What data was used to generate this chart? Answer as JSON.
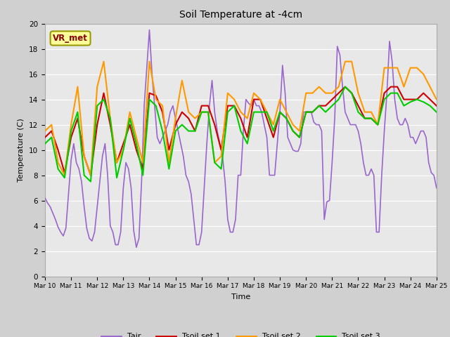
{
  "title": "Soil Temperature at -4cm",
  "xlabel": "Time",
  "ylabel": "Temperature (C)",
  "ylim": [
    0,
    20
  ],
  "xlim": [
    0,
    15
  ],
  "fig_bg": "#d0d0d0",
  "plot_bg": "#e8e8e8",
  "grid_color": "#ffffff",
  "annotation_text": "VR_met",
  "annotation_bg": "#ffff99",
  "annotation_border": "#999900",
  "annotation_text_color": "#880000",
  "xtick_labels": [
    "Mar 10",
    "Mar 11",
    "Mar 12",
    "Mar 13",
    "Mar 14",
    "Mar 15",
    "Mar 16",
    "Mar 17",
    "Mar 18",
    "Mar 19",
    "Mar 20",
    "Mar 21",
    "Mar 22",
    "Mar 23",
    "Mar 24",
    "Mar 25"
  ],
  "legend_entries": [
    "Tair",
    "Tsoil set 1",
    "Tsoil set 2",
    "Tsoil set 3"
  ],
  "legend_colors": [
    "#9966cc",
    "#cc0000",
    "#ff9900",
    "#00cc00"
  ],
  "Tair_x": [
    0.0,
    0.1,
    0.2,
    0.3,
    0.4,
    0.5,
    0.6,
    0.7,
    0.8,
    0.9,
    1.0,
    1.1,
    1.2,
    1.3,
    1.4,
    1.5,
    1.6,
    1.7,
    1.8,
    1.9,
    2.0,
    2.1,
    2.2,
    2.3,
    2.4,
    2.5,
    2.6,
    2.7,
    2.8,
    2.9,
    3.0,
    3.1,
    3.2,
    3.3,
    3.4,
    3.5,
    3.6,
    3.7,
    3.8,
    3.9,
    4.0,
    4.1,
    4.2,
    4.3,
    4.4,
    4.5,
    4.6,
    4.7,
    4.8,
    4.9,
    5.0,
    5.1,
    5.2,
    5.3,
    5.4,
    5.5,
    5.6,
    5.7,
    5.8,
    5.9,
    6.0,
    6.1,
    6.2,
    6.3,
    6.4,
    6.5,
    6.6,
    6.7,
    6.8,
    6.9,
    7.0,
    7.1,
    7.2,
    7.3,
    7.4,
    7.5,
    7.6,
    7.7,
    7.8,
    7.9,
    8.0,
    8.1,
    8.2,
    8.3,
    8.4,
    8.5,
    8.6,
    8.7,
    8.8,
    8.9,
    9.0,
    9.1,
    9.2,
    9.3,
    9.4,
    9.5,
    9.6,
    9.7,
    9.8,
    9.9,
    10.0,
    10.1,
    10.2,
    10.3,
    10.4,
    10.5,
    10.6,
    10.7,
    10.8,
    10.9,
    11.0,
    11.1,
    11.2,
    11.3,
    11.4,
    11.5,
    11.6,
    11.7,
    11.8,
    11.9,
    12.0,
    12.1,
    12.2,
    12.3,
    12.4,
    12.5,
    12.6,
    12.7,
    12.8,
    12.9,
    13.0,
    13.1,
    13.2,
    13.3,
    13.4,
    13.5,
    13.6,
    13.7,
    13.8,
    13.9,
    14.0,
    14.1,
    14.2,
    14.3,
    14.4,
    14.5,
    14.6,
    14.7,
    14.8,
    14.9,
    15.0
  ],
  "Tair_y": [
    6.2,
    5.8,
    5.5,
    5.0,
    4.5,
    3.9,
    3.5,
    3.2,
    3.8,
    6.5,
    9.2,
    10.5,
    9.0,
    8.5,
    7.5,
    5.5,
    3.8,
    3.0,
    2.8,
    3.5,
    5.5,
    7.5,
    9.5,
    10.5,
    8.0,
    4.0,
    3.5,
    2.5,
    2.5,
    3.5,
    7.0,
    9.0,
    8.5,
    7.0,
    3.6,
    2.3,
    3.0,
    7.5,
    13.5,
    16.5,
    19.5,
    16.0,
    13.5,
    11.0,
    10.5,
    11.0,
    11.5,
    12.0,
    13.0,
    13.5,
    12.5,
    11.5,
    10.5,
    9.5,
    8.0,
    7.5,
    6.5,
    4.5,
    2.5,
    2.5,
    3.5,
    7.0,
    10.5,
    13.5,
    15.5,
    13.0,
    11.5,
    10.5,
    9.5,
    7.5,
    4.5,
    3.5,
    3.5,
    4.5,
    8.0,
    8.0,
    11.5,
    14.0,
    13.7,
    13.5,
    14.0,
    13.5,
    13.5,
    13.0,
    12.0,
    11.0,
    8.0,
    8.0,
    8.0,
    10.5,
    13.0,
    16.7,
    14.5,
    11.0,
    10.5,
    10.0,
    9.9,
    9.9,
    10.5,
    13.0,
    13.0,
    13.0,
    13.0,
    12.2,
    12.0,
    12.0,
    11.5,
    4.5,
    5.9,
    6.0,
    9.0,
    12.5,
    18.2,
    17.5,
    15.0,
    13.0,
    12.5,
    12.0,
    12.0,
    12.0,
    11.5,
    10.5,
    9.0,
    8.0,
    8.0,
    8.5,
    8.0,
    3.5,
    3.5,
    8.0,
    11.5,
    14.5,
    18.6,
    17.0,
    14.0,
    12.5,
    12.0,
    12.0,
    12.5,
    12.0,
    11.0,
    11.0,
    10.5,
    11.0,
    11.5,
    11.5,
    11.0,
    9.0,
    8.2,
    8.0,
    7.0
  ],
  "Ts1_x": [
    0.0,
    0.25,
    0.5,
    0.75,
    1.0,
    1.25,
    1.5,
    1.75,
    2.0,
    2.25,
    2.5,
    2.75,
    3.0,
    3.25,
    3.5,
    3.75,
    4.0,
    4.25,
    4.5,
    4.75,
    5.0,
    5.25,
    5.5,
    5.75,
    6.0,
    6.25,
    6.5,
    6.75,
    7.0,
    7.25,
    7.5,
    7.75,
    8.0,
    8.25,
    8.5,
    8.75,
    9.0,
    9.25,
    9.5,
    9.75,
    10.0,
    10.25,
    10.5,
    10.75,
    11.0,
    11.25,
    11.5,
    11.75,
    12.0,
    12.25,
    12.5,
    12.75,
    13.0,
    13.25,
    13.5,
    13.75,
    14.0,
    14.25,
    14.5,
    14.75,
    15.0
  ],
  "Ts1_y": [
    11.0,
    11.5,
    10.0,
    8.2,
    11.0,
    12.5,
    9.5,
    8.0,
    12.0,
    14.5,
    12.0,
    9.0,
    10.5,
    12.0,
    10.0,
    8.5,
    14.5,
    14.3,
    13.0,
    10.0,
    12.0,
    13.0,
    12.5,
    11.5,
    13.5,
    13.5,
    12.0,
    10.0,
    13.5,
    13.5,
    12.5,
    11.0,
    14.0,
    14.0,
    12.5,
    11.0,
    13.0,
    12.5,
    11.5,
    11.0,
    13.0,
    13.0,
    13.5,
    13.5,
    14.0,
    14.5,
    15.0,
    14.5,
    13.5,
    12.5,
    12.5,
    12.0,
    14.5,
    15.0,
    15.0,
    14.0,
    14.0,
    14.0,
    14.5,
    14.0,
    13.5
  ],
  "Ts2_x": [
    0.0,
    0.25,
    0.5,
    0.75,
    1.0,
    1.25,
    1.5,
    1.75,
    2.0,
    2.25,
    2.5,
    2.75,
    3.0,
    3.25,
    3.5,
    3.75,
    4.0,
    4.25,
    4.5,
    4.75,
    5.0,
    5.25,
    5.5,
    5.75,
    6.0,
    6.25,
    6.5,
    6.75,
    7.0,
    7.25,
    7.5,
    7.75,
    8.0,
    8.25,
    8.5,
    8.75,
    9.0,
    9.25,
    9.5,
    9.75,
    10.0,
    10.25,
    10.5,
    10.75,
    11.0,
    11.25,
    11.5,
    11.75,
    12.0,
    12.25,
    12.5,
    12.75,
    13.0,
    13.25,
    13.5,
    13.75,
    14.0,
    14.25,
    14.5,
    14.75,
    15.0
  ],
  "Ts2_y": [
    11.5,
    12.0,
    9.0,
    8.0,
    12.0,
    15.0,
    9.5,
    8.0,
    15.0,
    17.0,
    12.5,
    9.0,
    10.0,
    13.0,
    11.0,
    9.0,
    17.0,
    14.0,
    13.5,
    9.0,
    12.5,
    15.5,
    13.0,
    12.5,
    13.0,
    13.0,
    9.0,
    9.5,
    14.5,
    14.0,
    13.0,
    12.5,
    14.5,
    14.0,
    13.0,
    12.0,
    14.0,
    13.0,
    12.0,
    11.5,
    14.5,
    14.5,
    15.0,
    14.5,
    14.5,
    15.0,
    17.0,
    17.0,
    14.5,
    13.0,
    13.0,
    12.0,
    16.5,
    16.5,
    16.5,
    15.0,
    16.5,
    16.5,
    16.0,
    15.0,
    14.0
  ],
  "Ts3_x": [
    0.0,
    0.25,
    0.5,
    0.75,
    1.0,
    1.25,
    1.5,
    1.75,
    2.0,
    2.25,
    2.5,
    2.75,
    3.0,
    3.25,
    3.5,
    3.75,
    4.0,
    4.25,
    4.5,
    4.75,
    5.0,
    5.25,
    5.5,
    5.75,
    6.0,
    6.25,
    6.5,
    6.75,
    7.0,
    7.25,
    7.5,
    7.75,
    8.0,
    8.25,
    8.5,
    8.75,
    9.0,
    9.25,
    9.5,
    9.75,
    10.0,
    10.25,
    10.5,
    10.75,
    11.0,
    11.25,
    11.5,
    11.75,
    12.0,
    12.25,
    12.5,
    12.75,
    13.0,
    13.25,
    13.5,
    13.75,
    14.0,
    14.25,
    14.5,
    14.75,
    15.0
  ],
  "Ts3_y": [
    10.5,
    11.0,
    8.5,
    7.8,
    11.5,
    13.0,
    8.0,
    7.5,
    13.5,
    14.0,
    12.5,
    7.8,
    10.0,
    12.5,
    10.5,
    8.0,
    14.0,
    13.5,
    11.5,
    8.5,
    11.5,
    12.0,
    11.5,
    11.5,
    13.0,
    13.0,
    9.0,
    8.5,
    13.0,
    13.5,
    11.5,
    10.5,
    13.0,
    13.0,
    13.0,
    11.5,
    13.0,
    12.5,
    11.5,
    11.0,
    13.0,
    13.0,
    13.5,
    13.0,
    13.5,
    14.0,
    15.0,
    14.5,
    13.0,
    12.5,
    12.5,
    12.0,
    14.0,
    14.5,
    14.5,
    13.5,
    13.8,
    14.0,
    13.8,
    13.5,
    13.0
  ]
}
